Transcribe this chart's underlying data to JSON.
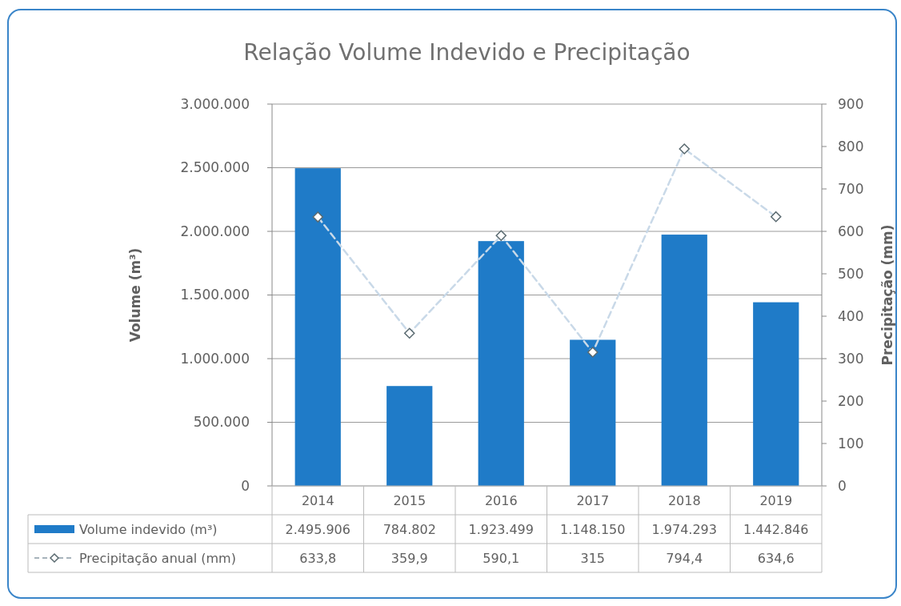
{
  "chart_data": {
    "type": "bar",
    "title": "Relação Volume Indevido e Precipitação",
    "ylabel": "Volume (m³)",
    "y2label": "Precipitação (mm)",
    "categories": [
      "2014",
      "2015",
      "2016",
      "2017",
      "2018",
      "2019"
    ],
    "series": [
      {
        "name": "Volume indevido (m³)",
        "color": "#1f7bc8",
        "values": [
          2495906,
          784802,
          1923499,
          1148150,
          1974293,
          1442846
        ],
        "value_labels": [
          "2.495.906",
          "784.802",
          "1.923.499",
          "1.148.150",
          "1.974.293",
          "1.442.846"
        ]
      },
      {
        "name": "Precipitação anual (mm)",
        "type": "line",
        "axis": "y2",
        "color": "#c9d9e8",
        "marker": "diamond",
        "line_style": "dashed",
        "values": [
          633.8,
          359.9,
          590.1,
          315,
          794.4,
          634.6
        ],
        "value_labels": [
          "633,8",
          "359,9",
          "590,1",
          "315",
          "794,4",
          "634,6"
        ]
      }
    ],
    "ylim": [
      0,
      3000000
    ],
    "yticks": [
      0,
      {
        "value": 500000,
        "label": "500.000"
      },
      {
        "value": 1000000,
        "label": "1.000.000"
      },
      {
        "value": 1500000,
        "label": "1.500.000"
      },
      {
        "value": 2000000,
        "label": "2.000.000"
      },
      {
        "value": 2500000,
        "label": "2.500.000"
      },
      {
        "value": 3000000,
        "label": "3.000.000"
      }
    ],
    "y2lim": [
      0,
      900
    ],
    "y2ticks": [
      0,
      100,
      200,
      300,
      400,
      500,
      600,
      700,
      800,
      900
    ],
    "grid": "y",
    "legend": "bottom"
  }
}
